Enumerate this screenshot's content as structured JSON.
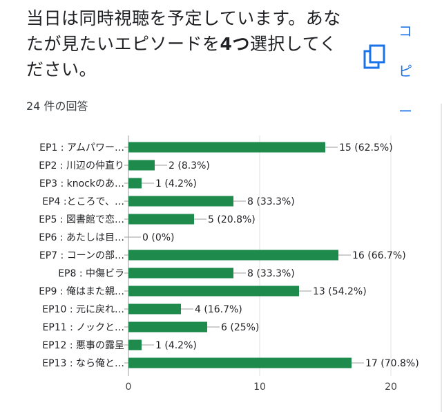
{
  "question": {
    "text_a": "当日は同時視聴を予定しています。あなたが見たいエピソードを",
    "text_bold": "4つ",
    "text_b": "選択してください。"
  },
  "response_count": "24 件の回答",
  "copy": {
    "icon": "copy-icon",
    "label_chars": [
      "コ",
      "ピ",
      "ー"
    ]
  },
  "colors": {
    "bar": "#1e8a4c",
    "accent": "#1a73e8",
    "grid": "#e0e0e0"
  },
  "chart_data": {
    "type": "bar",
    "orientation": "horizontal",
    "categories": [
      "EP1 : アムパワー…",
      "EP2 : 川辺の仲直り",
      "EP3 : knockのあ…",
      "EP4 :ところで、…",
      "EP5 : 図書館で恋…",
      "EP6 : あたしは目…",
      "EP7 : コーンの部…",
      "EP8 : 中傷ビラ",
      "EP9 : 俺はまた親…",
      "EP10 : 元に戻れ…",
      "EP11 : ノックと…",
      "EP12 : 悪事の露呈",
      "EP13 : なら俺と…"
    ],
    "values": [
      15,
      2,
      1,
      8,
      5,
      0,
      16,
      8,
      13,
      4,
      6,
      1,
      17
    ],
    "value_labels": [
      "15 (62.5%)",
      "2 (8.3%)",
      "1 (4.2%)",
      "8 (33.3%)",
      "5 (20.8%)",
      "0 (0%)",
      "16 (66.7%)",
      "8 (33.3%)",
      "13 (54.2%)",
      "4 (16.7%)",
      "6 (25%)",
      "1 (4.2%)",
      "17 (70.8%)"
    ],
    "xlim": [
      0,
      20
    ],
    "xticks": [
      0,
      10,
      20
    ],
    "xtick_labels": [
      "0",
      "10",
      "20"
    ],
    "grid": true,
    "title": "",
    "xlabel": "",
    "ylabel": ""
  }
}
